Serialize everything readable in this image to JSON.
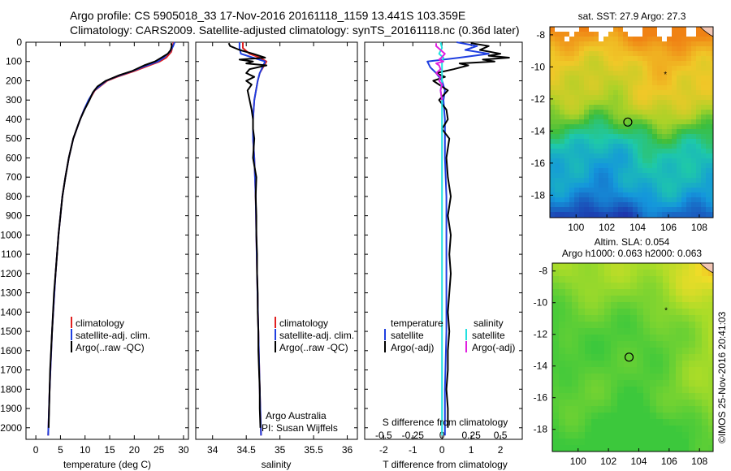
{
  "header": {
    "line1": "Argo profile: CS 5905018_33 17-Nov-2016 20161118_1159 13.441S 103.359E",
    "line2": "Climatology: CARS2009. Satellite-adjusted climatology: synTS_20161118.nc (0.36d later)"
  },
  "colors": {
    "climatology": "#e02020",
    "satellite": "#1f3fe0",
    "argo": "#000000",
    "s_satellite": "#22e0e0",
    "s_argo": "#e020e0",
    "marker": "#000000"
  },
  "chart_data": [
    {
      "type": "line",
      "id": "temperature",
      "xlabel": "temperature (deg C)",
      "xlim": [
        -2,
        31
      ],
      "xticks": [
        0,
        5,
        10,
        15,
        20,
        25,
        30
      ],
      "ylim": [
        0,
        2060
      ],
      "yticks": [
        0,
        100,
        200,
        300,
        400,
        500,
        600,
        700,
        800,
        900,
        1000,
        1100,
        1200,
        1300,
        1400,
        1500,
        1600,
        1700,
        1800,
        1900,
        2000
      ],
      "legend": [
        "climatology",
        "satellite-adj. clim.",
        "Argo(..raw -QC)"
      ],
      "series": [
        {
          "name": "climatology",
          "color": "#e02020",
          "depth": [
            0,
            20,
            50,
            80,
            100,
            130,
            150,
            180,
            200,
            250,
            300,
            350,
            400,
            500,
            600,
            700,
            800,
            1000,
            1200,
            1500,
            1800,
            2040
          ],
          "values": [
            28.0,
            27.8,
            27.5,
            26.5,
            25.2,
            22.0,
            20.0,
            16.5,
            14.5,
            12.0,
            10.8,
            9.8,
            9.0,
            7.6,
            6.7,
            6.0,
            5.4,
            4.6,
            4.0,
            3.3,
            2.8,
            2.5
          ]
        },
        {
          "name": "satellite-adj. clim.",
          "color": "#1f3fe0",
          "depth": [
            0,
            20,
            50,
            80,
            100,
            130,
            150,
            180,
            200,
            250,
            300,
            350,
            400,
            500,
            600,
            700,
            800,
            1000,
            1200,
            1500,
            1800,
            2040
          ],
          "values": [
            28.2,
            27.9,
            27.2,
            26.0,
            24.8,
            21.5,
            19.6,
            16.2,
            14.3,
            11.9,
            10.7,
            9.8,
            9.0,
            7.6,
            6.7,
            6.0,
            5.4,
            4.6,
            4.0,
            3.3,
            2.8,
            2.5
          ]
        },
        {
          "name": "Argo(..raw -QC)",
          "color": "#000000",
          "depth": [
            5,
            20,
            40,
            60,
            80,
            100,
            120,
            150,
            170,
            200,
            230,
            260,
            300,
            350,
            400,
            450,
            500,
            600,
            700,
            800,
            900,
            1000,
            1100,
            1200,
            1300,
            1400,
            1500,
            1600,
            1700,
            1800,
            1900,
            2000
          ],
          "values": [
            27.5,
            27.6,
            27.4,
            26.8,
            25.5,
            24.2,
            22.0,
            19.5,
            17.0,
            14.2,
            12.5,
            11.6,
            10.9,
            9.9,
            9.0,
            8.3,
            7.6,
            6.7,
            6.0,
            5.4,
            5.0,
            4.6,
            4.3,
            4.0,
            3.7,
            3.5,
            3.3,
            3.1,
            2.9,
            2.8,
            2.7,
            2.6
          ]
        }
      ]
    },
    {
      "type": "line",
      "id": "salinity",
      "xlabel": "salinity",
      "xlim": [
        33.75,
        36.15
      ],
      "xticks": [
        34,
        34.5,
        35,
        35.5,
        36
      ],
      "ylim": [
        0,
        2060
      ],
      "legend": [
        "climatology",
        "satellite-adj. clim.",
        "Argo(..raw -QC)"
      ],
      "series": [
        {
          "name": "climatology",
          "color": "#e02020",
          "depth": [
            0,
            30,
            60,
            80,
            100,
            130,
            160,
            200,
            300,
            400,
            500,
            600,
            800,
            1000,
            1200,
            1500,
            1800,
            2040
          ],
          "values": [
            34.45,
            34.45,
            34.55,
            34.7,
            34.8,
            34.75,
            34.7,
            34.67,
            34.62,
            34.6,
            34.6,
            34.62,
            34.64,
            34.65,
            34.66,
            34.68,
            34.7,
            34.72
          ]
        },
        {
          "name": "satellite-adj. clim.",
          "color": "#1f3fe0",
          "depth": [
            0,
            30,
            60,
            80,
            100,
            130,
            160,
            200,
            300,
            400,
            500,
            600,
            800,
            1000,
            1200,
            1500,
            1800,
            2040
          ],
          "values": [
            34.4,
            34.4,
            34.42,
            34.6,
            34.78,
            34.74,
            34.7,
            34.67,
            34.62,
            34.6,
            34.6,
            34.62,
            34.64,
            34.65,
            34.66,
            34.68,
            34.7,
            34.72
          ]
        },
        {
          "name": "Argo(..raw -QC)",
          "color": "#000000",
          "depth": [
            5,
            20,
            40,
            60,
            80,
            90,
            100,
            110,
            120,
            140,
            160,
            180,
            200,
            220,
            250,
            300,
            350,
            400,
            450,
            500,
            600,
            700,
            800,
            900,
            1000,
            1100,
            1200,
            1300,
            1400,
            1500,
            1600,
            1700,
            1800,
            1900,
            2000
          ],
          "values": [
            34.24,
            34.26,
            34.4,
            34.6,
            34.78,
            34.4,
            34.6,
            34.5,
            34.8,
            34.55,
            34.5,
            34.62,
            34.5,
            34.58,
            34.52,
            34.55,
            34.58,
            34.6,
            34.6,
            34.62,
            34.6,
            34.65,
            34.64,
            34.65,
            34.65,
            34.66,
            34.66,
            34.67,
            34.67,
            34.68,
            34.68,
            34.69,
            34.7,
            34.7,
            34.71
          ]
        }
      ]
    },
    {
      "type": "line",
      "id": "difference",
      "xlabel": "T difference from climatology",
      "xlabel2": "S difference from climatology",
      "xlim": [
        -2.65,
        2.75
      ],
      "xticks": [
        -2,
        -1,
        0,
        1,
        2
      ],
      "xticks_s": [
        "-0.5",
        "-0.25",
        "0",
        "0.25",
        "0.5"
      ],
      "ylim": [
        0,
        2060
      ],
      "legend_headers": [
        "temperature",
        "salinity"
      ],
      "legend": [
        "satellite",
        "Argo(-adj)",
        "satellite",
        "Argo(-adj)"
      ],
      "series": [
        {
          "name": "temperature satellite",
          "color": "#1f3fe0",
          "depth": [
            0,
            20,
            40,
            60,
            80,
            100,
            130,
            160,
            200,
            250,
            300,
            400,
            500,
            600,
            800,
            1000,
            1200,
            1500,
            1800,
            2040
          ],
          "values": [
            0.5,
            1.2,
            0.8,
            1.6,
            0.6,
            -0.5,
            -0.4,
            -0.2,
            0.0,
            0.1,
            0.05,
            0.1,
            0.1,
            0.1,
            0.15,
            0.15,
            0.15,
            0.15,
            0.1,
            0.1
          ]
        },
        {
          "name": "temperature Argo(-adj)",
          "color": "#000000",
          "depth": [
            5,
            20,
            40,
            60,
            70,
            80,
            90,
            100,
            110,
            120,
            140,
            160,
            180,
            200,
            250,
            300,
            350,
            400,
            450,
            500,
            600,
            700,
            800,
            900,
            1000,
            1100,
            1200,
            1300,
            1400,
            1500,
            1600,
            1700,
            1800,
            1900,
            2000
          ],
          "values": [
            1.0,
            1.6,
            1.3,
            2.0,
            1.6,
            2.3,
            1.4,
            1.8,
            0.6,
            0.9,
            0.4,
            -0.2,
            0.1,
            -0.3,
            0.2,
            -0.1,
            0.15,
            0.2,
            0.0,
            0.25,
            0.15,
            0.2,
            0.3,
            0.2,
            0.3,
            0.25,
            0.3,
            0.25,
            0.2,
            0.25,
            0.2,
            0.2,
            0.15,
            0.2,
            0.2
          ]
        },
        {
          "name": "salinity satellite",
          "color": "#22e0e0",
          "depth": [
            0,
            30,
            60,
            80,
            100,
            150,
            200,
            250,
            300,
            400,
            500,
            700,
            1000,
            1500,
            2040
          ],
          "values": [
            -0.05,
            0.0,
            -0.1,
            0.05,
            0.0,
            0.0,
            0.0,
            -0.05,
            0.0,
            0.0,
            0.0,
            0.0,
            0.0,
            0.0,
            0.0
          ]
        },
        {
          "name": "salinity Argo(-adj)",
          "color": "#e020e0",
          "depth": [
            5,
            20,
            40,
            60,
            80,
            90,
            100,
            110,
            120,
            140,
            160,
            180,
            200,
            220,
            250,
            300
          ],
          "values": [
            -0.2,
            -0.2,
            -0.05,
            0.1,
            -0.02,
            -0.1,
            0.05,
            -0.2,
            -0.1,
            -0.05,
            -0.2,
            -0.05,
            -0.1,
            0.0,
            -0.05,
            0.0
          ]
        }
      ]
    },
    {
      "type": "heatmap",
      "id": "sst-map",
      "title": "sat. SST: 27.9 Argo: 27.3",
      "xlim": [
        98.3,
        108.9
      ],
      "ylim": [
        -19.4,
        -7.5
      ],
      "xticks": [
        100,
        102,
        104,
        106,
        108
      ],
      "yticks": [
        -8,
        -10,
        -12,
        -14,
        -16,
        -18
      ],
      "argo_position": [
        103.36,
        -13.44
      ],
      "marker_position": [
        105.8,
        -10.5
      ]
    },
    {
      "type": "heatmap",
      "id": "sla-map",
      "title": "Altim. SLA: 0.054",
      "title2": "Argo h1000: 0.063 h2000: 0.063",
      "xlim": [
        98.3,
        108.9
      ],
      "ylim": [
        -19.4,
        -7.5
      ],
      "xticks": [
        100,
        102,
        104,
        106,
        108
      ],
      "yticks": [
        -8,
        -10,
        -12,
        -14,
        -16,
        -18
      ],
      "argo_position": [
        103.36,
        -13.44
      ],
      "marker_position": [
        105.8,
        -10.5
      ]
    }
  ],
  "labels": {
    "argo_australia": "Argo Australia",
    "pi": "PI: Susan Wijffels",
    "imos": "©IMOS 25-Nov-2016 20:41:03"
  }
}
